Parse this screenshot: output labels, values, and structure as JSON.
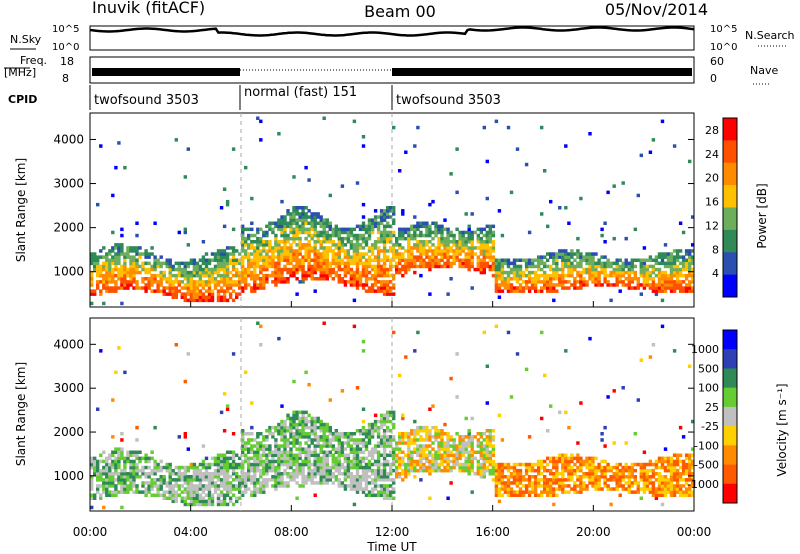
{
  "header": {
    "station": "Inuvik (fitACF)",
    "beam": "Beam 00",
    "date": "05/Nov/2014"
  },
  "status_panels": {
    "left_labels": {
      "nsky": "N.Sky",
      "freq": "Freq.",
      "freq_unit": "[MHz]",
      "cpid": "CPID"
    },
    "right_labels": {
      "nsearch": "N.Search",
      "nave": "Nave"
    },
    "noise_left_ticks": [
      "10^5",
      "10^0"
    ],
    "noise_right_ticks": [
      "10^5",
      "10^0"
    ],
    "freq_left_ticks": [
      "18",
      "8"
    ],
    "freq_right_ticks": [
      "60",
      "0"
    ],
    "cpid_segments": [
      {
        "label": "twofsound 3503",
        "start": 0,
        "end": 6
      },
      {
        "label": "normal (fast) 151",
        "start": 6,
        "end": 12
      },
      {
        "label": "twofsound 3503",
        "start": 12,
        "end": 24
      }
    ]
  },
  "colors": {
    "power_scale": [
      "#0000ff",
      "#2a4fb0",
      "#2f8a57",
      "#6dae5c",
      "#ffc000",
      "#ff8c00",
      "#ff5000",
      "#ff0000"
    ],
    "velocity_scale": [
      "#0000ff",
      "#2f3fb4",
      "#2f8a57",
      "#66cc33",
      "#c0c0c0",
      "#ffd000",
      "#ff8c00",
      "#ff5a00",
      "#ff0000"
    ]
  },
  "chart_data": [
    {
      "type": "heatmap",
      "panel": "power",
      "xlabel": "",
      "ylabel": "Slant Range [km]",
      "xlim": [
        0,
        24
      ],
      "ylim": [
        200,
        4600
      ],
      "yticks": [
        "1000",
        "2000",
        "3000",
        "4000"
      ],
      "xticks": [
        "00:00",
        "04:00",
        "08:00",
        "12:00",
        "16:00",
        "20:00",
        "00:00"
      ],
      "colorbar": {
        "label": "Power [dB]",
        "ticks": [
          "4",
          "8",
          "12",
          "16",
          "20",
          "24",
          "28"
        ],
        "range": [
          0,
          30
        ]
      },
      "cells": [
        {
          "t": 0,
          "r": [
            500,
            1400
          ]
        },
        {
          "t": 4,
          "r": [
            300,
            1400
          ]
        },
        {
          "t": 8,
          "r": [
            600,
            2300
          ]
        },
        {
          "t": 12,
          "r": [
            900,
            2000
          ]
        },
        {
          "t": 16,
          "r": [
            700,
            1400
          ]
        },
        {
          "t": 20,
          "r": [
            500,
            1300
          ]
        }
      ]
    },
    {
      "type": "heatmap",
      "panel": "velocity",
      "xlabel": "Time UT",
      "ylabel": "Slant Range [km]",
      "xlim": [
        0,
        24
      ],
      "ylim": [
        200,
        4600
      ],
      "yticks": [
        "1000",
        "2000",
        "3000",
        "4000"
      ],
      "xticks": [
        "00:00",
        "04:00",
        "08:00",
        "12:00",
        "16:00",
        "20:00",
        "00:00"
      ],
      "colorbar": {
        "label": "Velocity [m s⁻¹]",
        "ticks": [
          "1000",
          "500",
          "100",
          "25",
          "-25",
          "-100",
          "-500",
          "-1000"
        ]
      }
    }
  ]
}
